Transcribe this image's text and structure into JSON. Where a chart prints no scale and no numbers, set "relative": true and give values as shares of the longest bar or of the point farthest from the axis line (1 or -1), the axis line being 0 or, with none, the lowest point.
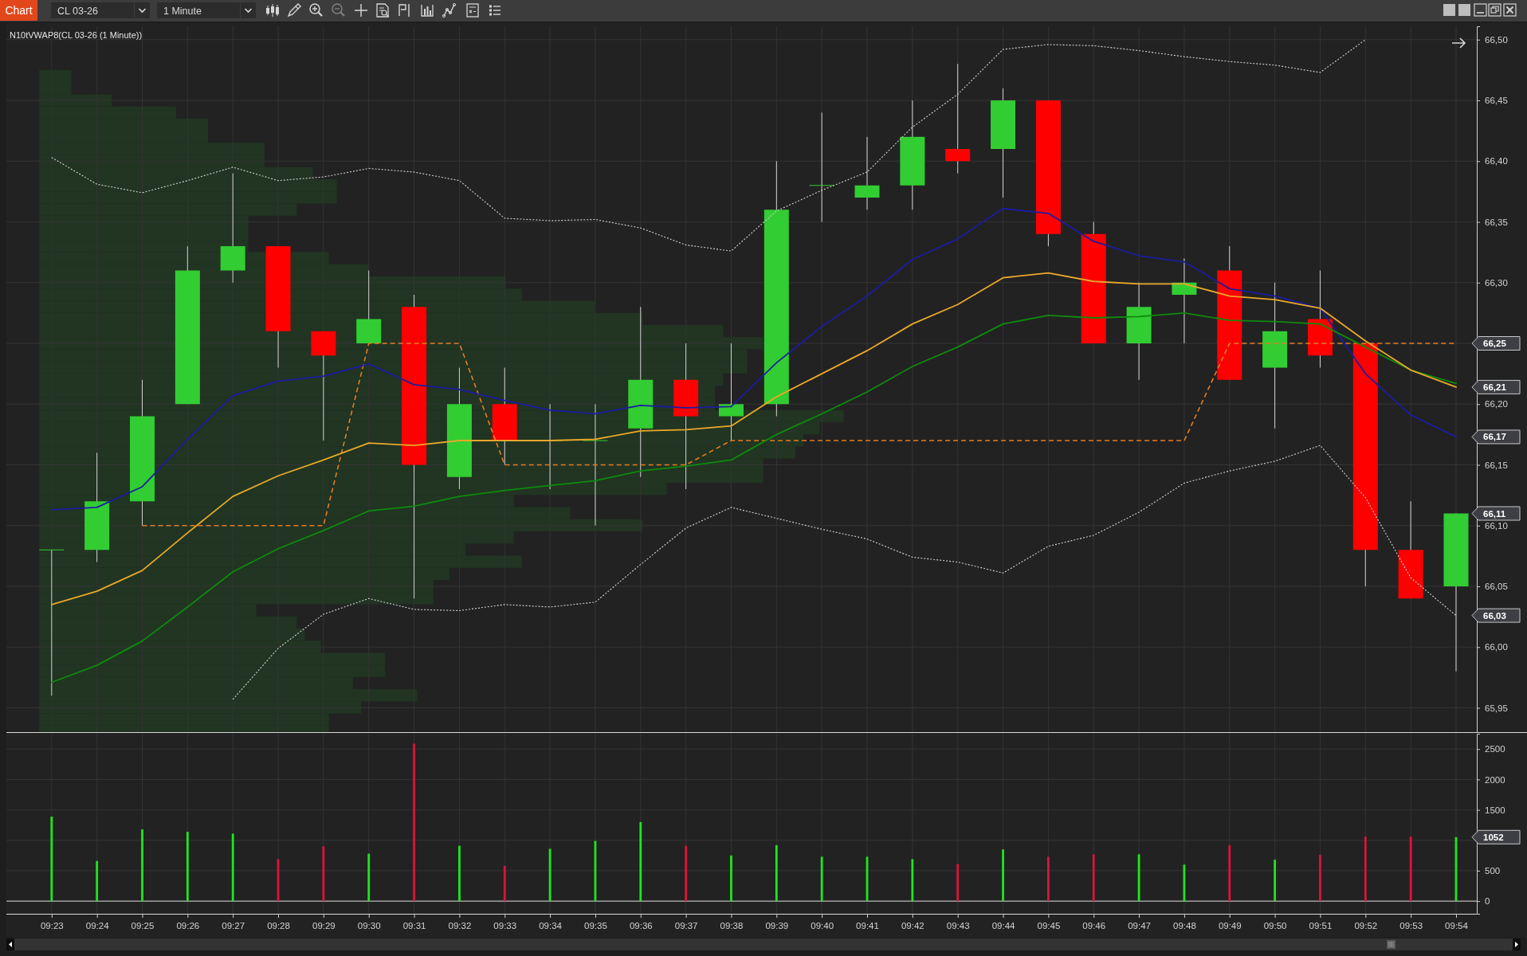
{
  "chart_data": [
    {
      "type": "candlestick",
      "title": "N10tVWAP8(CL 03-26 (1 Minute))",
      "annotations": [
        "Chart",
        "CL 03-26",
        "1 Minute",
        {
          "text": "66,25",
          "x": "09:54",
          "y": 66.25
        },
        {
          "text": "66,21",
          "x": "09:54",
          "y": 66.214
        },
        {
          "text": "66,17",
          "x": "09:54",
          "y": 66.173
        },
        {
          "text": "66,11",
          "x": "09:54",
          "y": 66.11
        },
        {
          "text": "66,03",
          "x": "09:54",
          "y": 66.026
        }
      ],
      "categories": [
        "09:23",
        "09:24",
        "09:25",
        "09:26",
        "09:27",
        "09:28",
        "09:29",
        "09:30",
        "09:31",
        "09:32",
        "09:33",
        "09:34",
        "09:35",
        "09:36",
        "09:37",
        "09:38",
        "09:39",
        "09:40",
        "09:41",
        "09:42",
        "09:43",
        "09:44",
        "09:45",
        "09:46",
        "09:47",
        "09:48",
        "09:49",
        "09:50",
        "09:51",
        "09:52",
        "09:53",
        "09:54"
      ],
      "ylim": [
        65.93,
        66.511
      ],
      "yticks": [
        {
          "value": 65.95,
          "label": "65,95"
        },
        {
          "value": 66,
          "label": "66,00"
        },
        {
          "value": 66.05,
          "label": "66,05"
        },
        {
          "value": 66.1,
          "label": "66,10"
        },
        {
          "value": 66.15,
          "label": "66,15"
        },
        {
          "value": 66.2,
          "label": "66,20"
        },
        {
          "value": 66.25,
          "label": null
        },
        {
          "value": 66.3,
          "label": "66,30"
        },
        {
          "value": 66.35,
          "label": "66,35"
        },
        {
          "value": 66.4,
          "label": "66,40"
        },
        {
          "value": 66.45,
          "label": "66,45"
        },
        {
          "value": 66.5,
          "label": "66,50"
        }
      ],
      "tick_labels": "y",
      "grid": true,
      "series": [
        {
          "type": "candlestick",
          "ohlc": [
            [
              66.08,
              66.08,
              65.96,
              66.08
            ],
            [
              66.08,
              66.16,
              66.07,
              66.12
            ],
            [
              66.12,
              66.22,
              66.1,
              66.19
            ],
            [
              66.2,
              66.33,
              66.2,
              66.31
            ],
            [
              66.31,
              66.39,
              66.3,
              66.33
            ],
            [
              66.33,
              66.33,
              66.23,
              66.26
            ],
            [
              66.26,
              66.26,
              66.17,
              66.24
            ],
            [
              66.25,
              66.31,
              66.25,
              66.27
            ],
            [
              66.28,
              66.29,
              66.04,
              66.15
            ],
            [
              66.14,
              66.23,
              66.13,
              66.2
            ],
            [
              66.2,
              66.23,
              66.15,
              66.17
            ],
            [
              66.17,
              66.2,
              66.13,
              66.17
            ],
            [
              66.17,
              66.2,
              66.1,
              66.17
            ],
            [
              66.18,
              66.28,
              66.14,
              66.22
            ],
            [
              66.22,
              66.25,
              66.13,
              66.19
            ],
            [
              66.19,
              66.25,
              66.17,
              66.2
            ],
            [
              66.2,
              66.4,
              66.19,
              66.36
            ],
            [
              66.38,
              66.44,
              66.35,
              66.38
            ],
            [
              66.37,
              66.42,
              66.36,
              66.38
            ],
            [
              66.38,
              66.45,
              66.36,
              66.42
            ],
            [
              66.41,
              66.48,
              66.39,
              66.4
            ],
            [
              66.41,
              66.46,
              66.37,
              66.45
            ],
            [
              66.45,
              66.45,
              66.33,
              66.34
            ],
            [
              66.34,
              66.35,
              66.25,
              66.25
            ],
            [
              66.25,
              66.3,
              66.22,
              66.28
            ],
            [
              66.29,
              66.32,
              66.25,
              66.3
            ],
            [
              66.31,
              66.33,
              66.22,
              66.22
            ],
            [
              66.23,
              66.3,
              66.18,
              66.26
            ],
            [
              66.27,
              66.31,
              66.23,
              66.24
            ],
            [
              66.25,
              66.25,
              66.05,
              66.08
            ],
            [
              66.08,
              66.12,
              66.04,
              66.04
            ],
            [
              66.05,
              66.11,
              65.98,
              66.11
            ]
          ],
          "colors": [
            "#32cd32",
            "#32cd32",
            "#32cd32",
            "#32cd32",
            "#32cd32",
            "#ff0000",
            "#ff0000",
            "#32cd32",
            "#ff0000",
            "#32cd32",
            "#ff0000",
            "#32cd32",
            "#32cd32",
            "#32cd32",
            "#ff0000",
            "#32cd32",
            "#32cd32",
            "#32cd32",
            "#32cd32",
            "#32cd32",
            "#ff0000",
            "#32cd32",
            "#ff0000",
            "#ff0000",
            "#32cd32",
            "#32cd32",
            "#ff0000",
            "#32cd32",
            "#ff0000",
            "#ff0000",
            "#ff0000",
            "#32cd32"
          ]
        },
        {
          "type": "line",
          "color": "#d2d2d2",
          "line_style": "dotted",
          "values": [
            66.403,
            66.381,
            66.374,
            66.384,
            66.395,
            66.384,
            66.387,
            66.394,
            66.391,
            66.384,
            66.353,
            66.351,
            66.352,
            66.345,
            66.331,
            66.326,
            66.359,
            66.376,
            66.391,
            66.428,
            66.455,
            66.492,
            66.496,
            66.495,
            66.491,
            66.486,
            66.482,
            66.479,
            66.473,
            66.5,
            null,
            null
          ]
        },
        {
          "type": "line",
          "color": "#d2d2d2",
          "line_style": "dotted",
          "values": [
            null,
            null,
            null,
            null,
            65.957,
            65.999,
            66.027,
            66.04,
            66.031,
            66.03,
            66.035,
            66.033,
            66.037,
            66.068,
            66.098,
            66.115,
            66.106,
            66.097,
            66.089,
            66.074,
            66.07,
            66.061,
            66.083,
            66.092,
            66.111,
            66.135,
            66.145,
            66.153,
            66.166,
            66.123,
            66.057,
            66.026
          ]
        },
        {
          "type": "line",
          "color": "#e27d22",
          "line_style": "dashed",
          "values": [
            null,
            null,
            66.1,
            66.1,
            66.1,
            66.1,
            66.1,
            66.25,
            66.25,
            66.25,
            66.15,
            66.15,
            66.15,
            66.15,
            66.15,
            66.17,
            66.17,
            66.17,
            66.17,
            66.17,
            66.17,
            66.17,
            66.17,
            66.17,
            66.17,
            66.17,
            66.25,
            66.25,
            66.25,
            66.25,
            66.25,
            66.25
          ]
        },
        {
          "type": "line",
          "color": "#1c1ca0",
          "values": [
            66.113,
            66.115,
            66.132,
            66.171,
            66.207,
            66.219,
            66.223,
            66.233,
            66.216,
            66.212,
            66.203,
            66.195,
            66.192,
            66.199,
            66.197,
            66.198,
            66.234,
            66.264,
            66.289,
            66.319,
            66.336,
            66.361,
            66.357,
            66.334,
            66.322,
            66.317,
            66.295,
            66.289,
            66.279,
            66.225,
            66.191,
            66.173
          ]
        },
        {
          "type": "line",
          "color": "#0e8a0e",
          "values": [
            65.971,
            65.985,
            66.005,
            66.033,
            66.062,
            66.081,
            66.096,
            66.112,
            66.116,
            66.124,
            66.129,
            66.133,
            66.137,
            66.145,
            66.149,
            66.154,
            66.175,
            66.192,
            66.21,
            66.231,
            66.247,
            66.266,
            66.273,
            66.271,
            66.272,
            66.275,
            66.269,
            66.268,
            66.266,
            66.247,
            66.228,
            66.217
          ]
        },
        {
          "type": "line",
          "color": "#e9a82a",
          "values": [
            66.035,
            66.046,
            66.063,
            66.094,
            66.124,
            66.141,
            66.154,
            66.168,
            66.166,
            66.17,
            66.17,
            66.17,
            66.171,
            66.178,
            66.179,
            66.182,
            66.206,
            66.225,
            66.244,
            66.266,
            66.282,
            66.304,
            66.308,
            66.301,
            66.299,
            66.299,
            66.289,
            66.286,
            66.279,
            66.252,
            66.228,
            66.214
          ]
        }
      ]
    },
    {
      "type": "bar",
      "orientation": "horizontal",
      "relative": true,
      "color": "#213522",
      "categories": [
        null,
        null,
        null,
        null,
        null,
        null,
        null,
        null,
        null,
        null,
        null,
        null,
        null,
        null,
        null,
        null,
        null,
        null,
        null,
        null,
        null,
        null,
        null,
        null,
        null,
        null,
        null,
        null,
        null,
        null,
        null,
        null,
        null,
        null,
        null,
        null,
        null,
        null,
        null,
        null,
        null,
        null,
        null,
        null,
        null,
        null,
        null,
        null,
        null,
        null,
        null,
        null,
        null,
        null,
        null
      ],
      "values": [
        0.04,
        0.04,
        0.09,
        0.17,
        0.21,
        0.21,
        0.28,
        0.28,
        0.34,
        0.37,
        0.37,
        0.32,
        0.26,
        0.26,
        0.26,
        0.36,
        0.41,
        0.58,
        0.6,
        0.69,
        0.75,
        0.85,
        0.9,
        0.88,
        0.88,
        0.85,
        0.84,
        0.84,
        1,
        0.97,
        0.95,
        0.94,
        0.9,
        0.9,
        0.78,
        0.59,
        0.66,
        0.75,
        0.59,
        0.53,
        0.6,
        0.51,
        0.49,
        0.49,
        0.27,
        0.32,
        0.33,
        0.35,
        0.43,
        0.43,
        0.39,
        0.47,
        0.4,
        0.36,
        0.36
      ]
    },
    {
      "type": "bar",
      "grid": true,
      "annotations": [
        {
          "text": "1052",
          "x": "09:54",
          "y": 1052
        }
      ],
      "categories": [
        "09:23",
        "09:24",
        "09:25",
        "09:26",
        "09:27",
        "09:28",
        "09:29",
        "09:30",
        "09:31",
        "09:32",
        "09:33",
        "09:34",
        "09:35",
        "09:36",
        "09:37",
        "09:38",
        "09:39",
        "09:40",
        "09:41",
        "09:42",
        "09:43",
        "09:44",
        "09:45",
        "09:46",
        "09:47",
        "09:48",
        "09:49",
        "09:50",
        "09:51",
        "09:52",
        "09:53",
        "09:54"
      ],
      "values": [
        1390,
        660,
        1180,
        1140,
        1110,
        690,
        900,
        780,
        2590,
        910,
        580,
        860,
        990,
        1300,
        910,
        750,
        920,
        730,
        730,
        690,
        610,
        850,
        730,
        770,
        770,
        600,
        920,
        680,
        760,
        1060,
        1060,
        1052
      ],
      "colors": [
        "#1ee61e",
        "#1ee61e",
        "#1ee61e",
        "#1ee61e",
        "#1ee61e",
        "#dc143c",
        "#dc143c",
        "#1ee61e",
        "#dc143c",
        "#1ee61e",
        "#dc143c",
        "#1ee61e",
        "#1ee61e",
        "#1ee61e",
        "#dc143c",
        "#1ee61e",
        "#1ee61e",
        "#1ee61e",
        "#1ee61e",
        "#1ee61e",
        "#dc143c",
        "#1ee61e",
        "#dc143c",
        "#dc143c",
        "#1ee61e",
        "#1ee61e",
        "#dc143c",
        "#1ee61e",
        "#dc143c",
        "#dc143c",
        "#dc143c",
        "#1ee61e"
      ],
      "ylim": [
        -208,
        2752
      ],
      "yticks": [
        0,
        500,
        {
          "value": 1000,
          "label": null
        },
        1500,
        2000,
        2500
      ]
    }
  ]
}
